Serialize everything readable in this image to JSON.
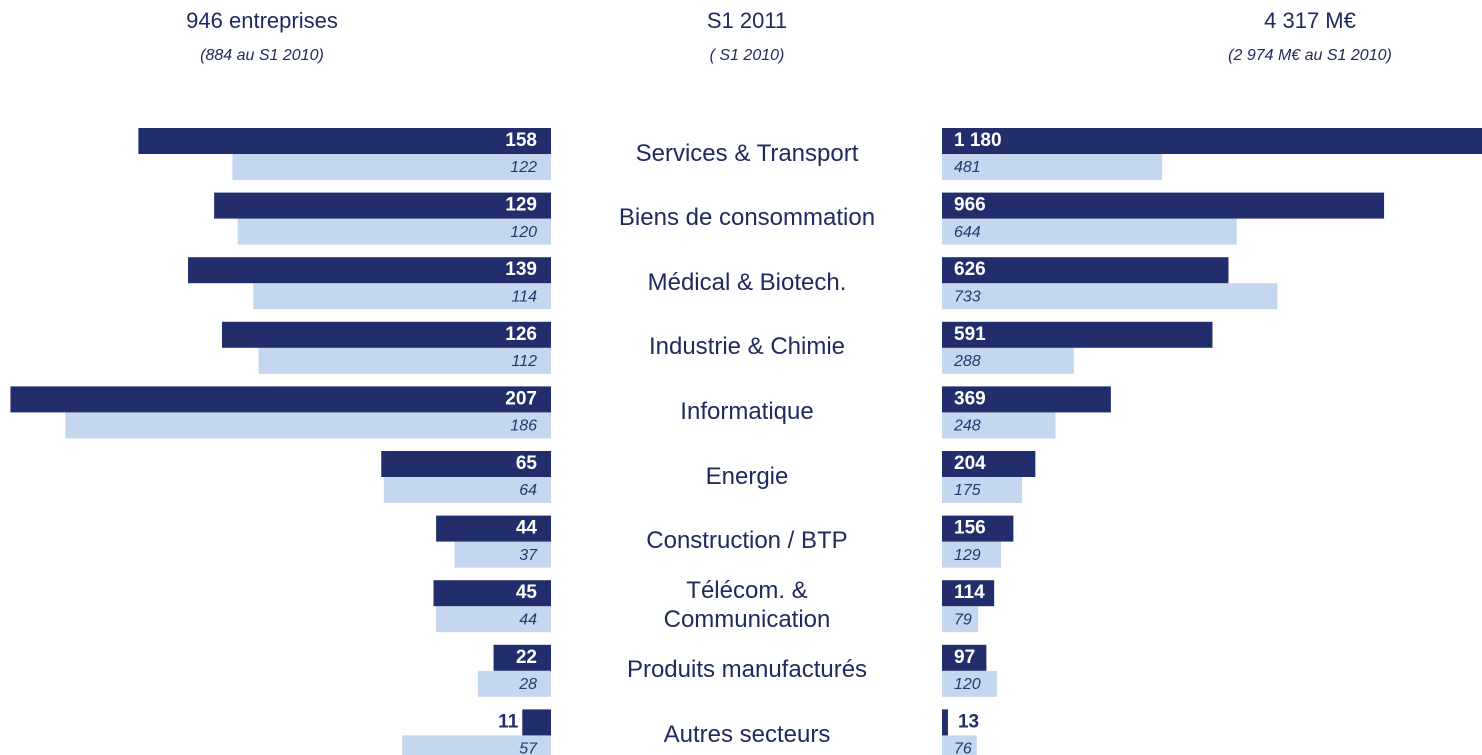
{
  "chart_data": {
    "type": "butterfly",
    "headers": [
      {
        "title": "946 entreprises",
        "subtitle": "(884 au S1 2010)"
      },
      {
        "title": "S1 2011",
        "subtitle": "( S1 2010)"
      },
      {
        "title": "4 317 M€",
        "subtitle": "(2 974 M€ au S1 2010)"
      }
    ],
    "categories": [
      "Services & Transport",
      "Biens de consommation",
      "Médical & Biotech.",
      "Industrie & Chimie",
      "Informatique",
      "Energie",
      "Construction / BTP",
      "Télécom. &\nCommunication",
      "Produits manufacturés",
      "Autres secteurs"
    ],
    "left": {
      "xlim": [
        0,
        211
      ],
      "series": [
        {
          "color": "#222d6b",
          "values": [
            158,
            129,
            139,
            126,
            207,
            65,
            44,
            45,
            22,
            11
          ]
        },
        {
          "color": "#c5d6ef",
          "values": [
            122,
            120,
            114,
            112,
            186,
            64,
            37,
            44,
            28,
            57
          ]
        }
      ]
    },
    "right": {
      "xlim": [
        0,
        1180
      ],
      "series": [
        {
          "color": "#222d6b",
          "values": [
            1180,
            966,
            626,
            591,
            369,
            204,
            156,
            114,
            97,
            13
          ],
          "value_labels": [
            "1 180",
            "966",
            "626",
            "591",
            "369",
            "204",
            "156",
            "114",
            "97",
            "13"
          ]
        },
        {
          "color": "#c5d6ef",
          "values": [
            481,
            644,
            733,
            288,
            248,
            175,
            129,
            79,
            120,
            76
          ]
        }
      ]
    }
  }
}
